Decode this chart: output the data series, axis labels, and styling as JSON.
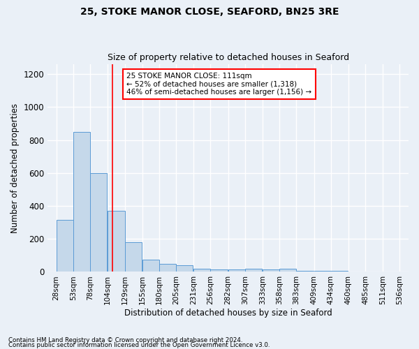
{
  "title1": "25, STOKE MANOR CLOSE, SEAFORD, BN25 3RE",
  "title2": "Size of property relative to detached houses in Seaford",
  "xlabel": "Distribution of detached houses by size in Seaford",
  "ylabel": "Number of detached properties",
  "bin_labels": [
    "28sqm",
    "53sqm",
    "78sqm",
    "104sqm",
    "129sqm",
    "155sqm",
    "180sqm",
    "205sqm",
    "231sqm",
    "256sqm",
    "282sqm",
    "307sqm",
    "333sqm",
    "358sqm",
    "383sqm",
    "409sqm",
    "434sqm",
    "460sqm",
    "485sqm",
    "511sqm",
    "536sqm"
  ],
  "bar_heights": [
    315,
    850,
    600,
    370,
    180,
    75,
    50,
    38,
    20,
    14,
    14,
    18,
    14,
    18,
    5,
    5,
    5,
    3,
    3,
    3
  ],
  "bar_color": "#c5d8ea",
  "bar_edgecolor": "#5b9bd5",
  "property_line_x": 111,
  "annotation_text": "25 STOKE MANOR CLOSE: 111sqm\n← 52% of detached houses are smaller (1,318)\n46% of semi-detached houses are larger (1,156) →",
  "annotation_box_color": "white",
  "annotation_box_edgecolor": "red",
  "footnote1": "Contains HM Land Registry data © Crown copyright and database right 2024.",
  "footnote2": "Contains public sector information licensed under the Open Government Licence v3.0.",
  "ylim": [
    0,
    1260
  ],
  "yticks": [
    0,
    200,
    400,
    600,
    800,
    1000,
    1200
  ],
  "bin_starts": [
    28,
    53,
    78,
    104,
    129,
    155,
    180,
    205,
    231,
    256,
    282,
    307,
    333,
    358,
    383,
    409,
    434,
    460,
    485,
    511
  ],
  "bin_width": 25,
  "xlim": [
    15,
    549
  ],
  "tick_positions": [
    28,
    53,
    78,
    104,
    129,
    155,
    180,
    205,
    231,
    256,
    282,
    307,
    333,
    358,
    383,
    409,
    434,
    460,
    485,
    511,
    536
  ],
  "bg_color": "#eaf0f7",
  "grid_color": "white",
  "title1_fontsize": 10,
  "title2_fontsize": 9,
  "ylabel_fontsize": 8.5,
  "xlabel_fontsize": 8.5,
  "ytick_fontsize": 8.5,
  "xtick_fontsize": 7.5
}
